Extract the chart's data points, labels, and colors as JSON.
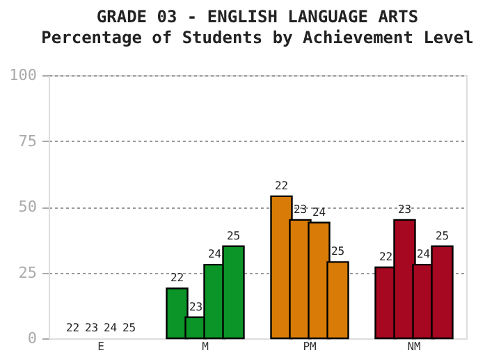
{
  "chart_data": {
    "type": "bar",
    "title": "GRADE 03 - ENGLISH LANGUAGE ARTS",
    "subtitle": "Percentage of Students by Achievement Level",
    "categories": [
      "E",
      "M",
      "PM",
      "NM"
    ],
    "series": [
      {
        "name": "22",
        "colors": [
          "#0b9427",
          "#0b9427",
          "#d97c07",
          "#a50820"
        ],
        "values": [
          0,
          19,
          54,
          27
        ]
      },
      {
        "name": "23",
        "colors": [
          "#0b9427",
          "#0b9427",
          "#d97c07",
          "#a50820"
        ],
        "values": [
          0,
          8,
          45,
          45
        ]
      },
      {
        "name": "24",
        "colors": [
          "#0b9427",
          "#0b9427",
          "#d97c07",
          "#a50820"
        ],
        "values": [
          0,
          28,
          44,
          28
        ]
      },
      {
        "name": "25",
        "colors": [
          "#0b9427",
          "#0b9427",
          "#d97c07",
          "#a50820"
        ],
        "values": [
          0,
          35,
          29,
          35
        ]
      }
    ],
    "ylim": [
      0,
      100
    ],
    "yticks": [
      0,
      25,
      50,
      75,
      100
    ],
    "grid": "y"
  }
}
